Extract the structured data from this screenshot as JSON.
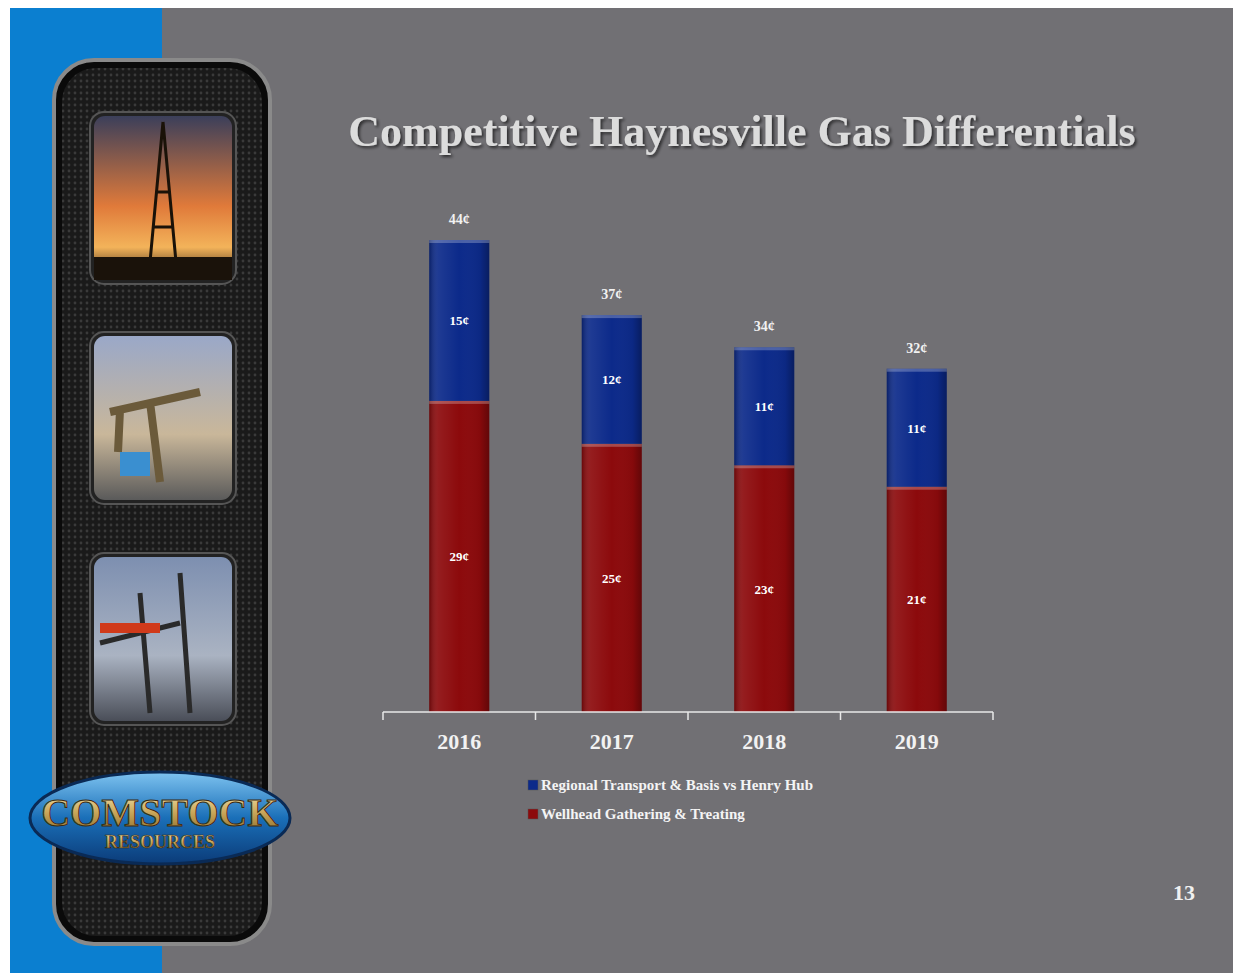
{
  "chart_data": {
    "type": "bar",
    "title": "Competitive Haynesville Gas Differentials",
    "categories": [
      "2016",
      "2017",
      "2018",
      "2019"
    ],
    "series": [
      {
        "name": "Wellhead Gathering & Treating",
        "color": "#8c0a0c",
        "values": [
          29,
          25,
          23,
          21
        ],
        "value_labels": [
          "29¢",
          "25¢",
          "23¢",
          "21¢"
        ]
      },
      {
        "name": "Regional Transport & Basis vs Henry Hub",
        "color": "#0c2a8a",
        "values": [
          15,
          12,
          11,
          11
        ],
        "value_labels": [
          "15¢",
          "12¢",
          "11¢",
          "11¢"
        ]
      }
    ],
    "totals": [
      44,
      37,
      34,
      32
    ],
    "total_labels": [
      "44¢",
      "37¢",
      "34¢",
      "32¢"
    ],
    "ylim": [
      0,
      44
    ],
    "stacked": true,
    "data_labels": true,
    "tick_labels": "x",
    "grid": false,
    "legend": "bottom"
  },
  "slide": {
    "page_number": "13",
    "logo_line1": "COMSTOCK",
    "logo_line2": "RESOURCES"
  }
}
